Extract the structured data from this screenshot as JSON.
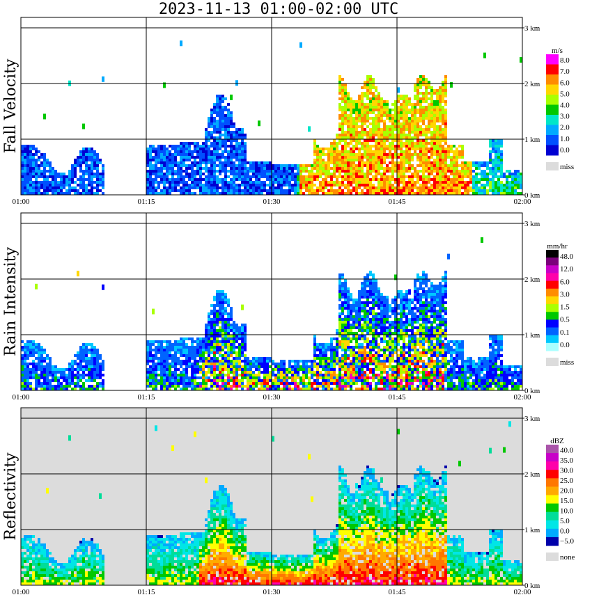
{
  "title": "2023-11-13   01:00-02:00 UTC",
  "chart_data": [
    {
      "type": "heatmap",
      "ylabel": "Fall Velocity",
      "x_ticks": [
        "01:00",
        "01:15",
        "01:30",
        "01:45",
        "02:00"
      ],
      "xlim": [
        "01:00",
        "02:00"
      ],
      "y_ticks": [
        "0 km",
        "1 km",
        "2 km",
        "3 km"
      ],
      "ylim_km": [
        0,
        3.2
      ],
      "grid": true,
      "background": "#ffffff",
      "colorbar": {
        "unit": "m/s",
        "labels": [
          "8.0",
          "7.0",
          "6.0",
          "5.0",
          "4.0",
          "3.0",
          "2.0",
          "1.0",
          "0.0"
        ],
        "colors": [
          "#ff00ff",
          "#ff0000",
          "#ff8c00",
          "#ffd700",
          "#aaff00",
          "#00c800",
          "#00e6c8",
          "#00aaff",
          "#0050ff",
          "#0000d2"
        ],
        "miss_label": "miss",
        "miss_color": "#dcdcdc"
      }
    },
    {
      "type": "heatmap",
      "ylabel": "Rain Intensity",
      "x_ticks": [
        "01:00",
        "01:15",
        "01:30",
        "01:45",
        "02:00"
      ],
      "xlim": [
        "01:00",
        "02:00"
      ],
      "y_ticks": [
        "0 km",
        "1 km",
        "2 km",
        "3 km"
      ],
      "ylim_km": [
        0,
        3.2
      ],
      "grid": true,
      "background": "#ffffff",
      "colorbar": {
        "unit": "mm/hr",
        "labels": [
          "48.0",
          "12.0",
          "6.0",
          "3.0",
          "1.5",
          "0.5",
          "0.1",
          "0.0"
        ],
        "colors": [
          "#000000",
          "#7b007b",
          "#c800c8",
          "#ff00aa",
          "#ff0000",
          "#ff8c00",
          "#ffd700",
          "#aaff00",
          "#00c800",
          "#0000ff",
          "#0064ff",
          "#00c8ff",
          "#aaffff"
        ],
        "miss_label": "miss",
        "miss_color": "#dcdcdc"
      }
    },
    {
      "type": "heatmap",
      "ylabel": "Reflectivity",
      "x_ticks": [
        "01:00",
        "01:15",
        "01:30",
        "01:45",
        "02:00"
      ],
      "xlim": [
        "01:00",
        "02:00"
      ],
      "y_ticks": [
        "0 km",
        "1 km",
        "2 km",
        "3 km"
      ],
      "ylim_km": [
        0,
        3.2
      ],
      "grid": true,
      "background": "#dcdcdc",
      "colorbar": {
        "unit": "dBZ",
        "labels": [
          "40.0",
          "35.0",
          "30.0",
          "25.0",
          "20.0",
          "15.0",
          "10.0",
          "5.0",
          "0.0",
          "−5.0"
        ],
        "colors": [
          "#aa55aa",
          "#c800c8",
          "#ff00aa",
          "#ff0000",
          "#ff7700",
          "#ffaa00",
          "#ffff00",
          "#00c800",
          "#00dd99",
          "#00e6e6",
          "#00aaff",
          "#0000aa"
        ],
        "miss_label": "none",
        "miss_color": "#dcdcdc"
      }
    }
  ]
}
